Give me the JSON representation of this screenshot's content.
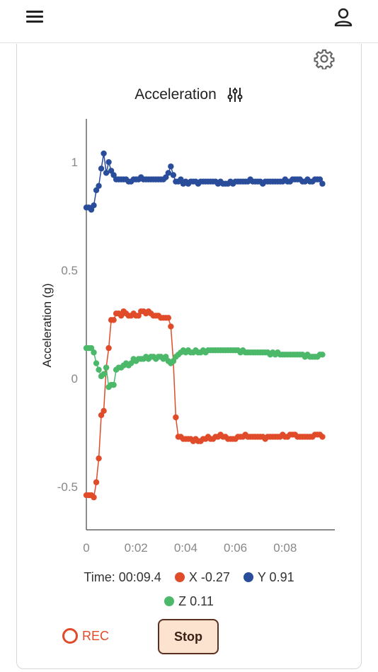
{
  "header": {
    "menu_icon": "hamburger-menu-icon",
    "account_icon": "user-icon"
  },
  "card": {
    "settings_icon": "gear-icon",
    "title": "Acceleration",
    "tune_icon": "tune-sliders-icon"
  },
  "chart_data": {
    "type": "line",
    "title": "Acceleration",
    "ylabel": "Acceleration (g)",
    "xlabel": "",
    "xlim": [
      0,
      0.1
    ],
    "ylim": [
      -0.7,
      1.2
    ],
    "x_ticks": [
      "0",
      "0:02",
      "0:04",
      "0:06",
      "0:08"
    ],
    "y_ticks": [
      "1",
      "0.5",
      "0",
      "-0.5"
    ],
    "y_tick_values": [
      1,
      0.5,
      0,
      -0.5
    ],
    "grid": false,
    "legend": "bottom",
    "x": [
      0,
      0.001,
      0.002,
      0.003,
      0.004,
      0.005,
      0.006,
      0.007,
      0.008,
      0.009,
      0.01,
      0.011,
      0.012,
      0.013,
      0.014,
      0.015,
      0.016,
      0.017,
      0.018,
      0.019,
      0.02,
      0.021,
      0.022,
      0.023,
      0.024,
      0.025,
      0.026,
      0.027,
      0.028,
      0.029,
      0.03,
      0.031,
      0.032,
      0.033,
      0.034,
      0.035,
      0.036,
      0.037,
      0.038,
      0.039,
      0.04,
      0.041,
      0.042,
      0.043,
      0.044,
      0.045,
      0.046,
      0.047,
      0.048,
      0.049,
      0.05,
      0.051,
      0.052,
      0.053,
      0.054,
      0.055,
      0.056,
      0.057,
      0.058,
      0.059,
      0.06,
      0.061,
      0.062,
      0.063,
      0.064,
      0.065,
      0.066,
      0.067,
      0.068,
      0.069,
      0.07,
      0.071,
      0.072,
      0.073,
      0.074,
      0.075,
      0.076,
      0.077,
      0.078,
      0.079,
      0.08,
      0.081,
      0.082,
      0.083,
      0.084,
      0.085,
      0.086,
      0.087,
      0.088,
      0.089,
      0.09,
      0.091,
      0.092,
      0.093,
      0.094,
      0.095
    ],
    "series": [
      {
        "name": "X",
        "color": "#e04b2a",
        "values": [
          -0.54,
          -0.54,
          -0.54,
          -0.55,
          -0.48,
          -0.37,
          -0.17,
          -0.15,
          0.05,
          0.14,
          0.27,
          0.27,
          0.3,
          0.3,
          0.29,
          0.31,
          0.3,
          0.29,
          0.29,
          0.3,
          0.29,
          0.29,
          0.31,
          0.31,
          0.3,
          0.31,
          0.3,
          0.29,
          0.29,
          0.29,
          0.28,
          0.28,
          0.28,
          0.28,
          0.24,
          0.08,
          -0.18,
          -0.27,
          -0.27,
          -0.28,
          -0.28,
          -0.28,
          -0.28,
          -0.29,
          -0.28,
          -0.29,
          -0.29,
          -0.28,
          -0.28,
          -0.27,
          -0.28,
          -0.28,
          -0.27,
          -0.27,
          -0.26,
          -0.27,
          -0.27,
          -0.28,
          -0.28,
          -0.28,
          -0.28,
          -0.27,
          -0.27,
          -0.27,
          -0.26,
          -0.27,
          -0.27,
          -0.27,
          -0.27,
          -0.27,
          -0.27,
          -0.27,
          -0.28,
          -0.27,
          -0.27,
          -0.27,
          -0.27,
          -0.27,
          -0.27,
          -0.26,
          -0.27,
          -0.27,
          -0.26,
          -0.26,
          -0.26,
          -0.27,
          -0.27,
          -0.27,
          -0.27,
          -0.27,
          -0.27,
          -0.27,
          -0.26,
          -0.26,
          -0.26,
          -0.27
        ]
      },
      {
        "name": "Y",
        "color": "#2a4d9b",
        "values": [
          0.79,
          0.79,
          0.78,
          0.8,
          0.87,
          0.89,
          0.97,
          1.04,
          0.95,
          1.0,
          0.96,
          0.94,
          0.92,
          0.92,
          0.92,
          0.92,
          0.92,
          0.91,
          0.91,
          0.92,
          0.92,
          0.92,
          0.93,
          0.92,
          0.92,
          0.92,
          0.92,
          0.92,
          0.92,
          0.92,
          0.92,
          0.92,
          0.93,
          0.95,
          0.98,
          0.94,
          0.91,
          0.91,
          0.92,
          0.9,
          0.91,
          0.9,
          0.91,
          0.91,
          0.91,
          0.9,
          0.91,
          0.91,
          0.91,
          0.91,
          0.91,
          0.91,
          0.91,
          0.9,
          0.91,
          0.9,
          0.9,
          0.9,
          0.91,
          0.9,
          0.91,
          0.91,
          0.91,
          0.91,
          0.91,
          0.91,
          0.92,
          0.91,
          0.91,
          0.91,
          0.91,
          0.9,
          0.91,
          0.91,
          0.91,
          0.91,
          0.91,
          0.91,
          0.91,
          0.91,
          0.92,
          0.91,
          0.91,
          0.92,
          0.92,
          0.92,
          0.92,
          0.91,
          0.91,
          0.92,
          0.91,
          0.91,
          0.92,
          0.92,
          0.92,
          0.9
        ]
      },
      {
        "name": "Z",
        "color": "#4cb86a",
        "values": [
          0.14,
          0.14,
          0.14,
          0.12,
          0.07,
          0.04,
          0.01,
          0.02,
          0.05,
          -0.04,
          -0.03,
          -0.03,
          0.04,
          0.05,
          0.05,
          0.06,
          0.07,
          0.06,
          0.07,
          0.09,
          0.08,
          0.09,
          0.09,
          0.09,
          0.1,
          0.09,
          0.1,
          0.1,
          0.09,
          0.1,
          0.1,
          0.09,
          0.1,
          0.08,
          0.07,
          0.08,
          0.1,
          0.11,
          0.12,
          0.13,
          0.12,
          0.13,
          0.12,
          0.12,
          0.13,
          0.12,
          0.12,
          0.13,
          0.12,
          0.13,
          0.13,
          0.13,
          0.13,
          0.13,
          0.13,
          0.13,
          0.13,
          0.13,
          0.13,
          0.13,
          0.13,
          0.13,
          0.12,
          0.13,
          0.12,
          0.12,
          0.12,
          0.12,
          0.12,
          0.12,
          0.12,
          0.12,
          0.12,
          0.12,
          0.11,
          0.12,
          0.11,
          0.12,
          0.11,
          0.11,
          0.11,
          0.11,
          0.11,
          0.11,
          0.11,
          0.11,
          0.11,
          0.11,
          0.1,
          0.11,
          0.1,
          0.1,
          0.1,
          0.1,
          0.11,
          0.11
        ]
      }
    ]
  },
  "legend": {
    "time_label": "Time: 00:09.4",
    "x_label": "X -0.27",
    "y_label": "Y 0.91",
    "z_label": "Z 0.11"
  },
  "controls": {
    "rec_label": "REC",
    "stop_label": "Stop"
  },
  "colors": {
    "x": "#e04b2a",
    "y": "#2a4d9b",
    "z": "#4cb86a",
    "rec": "#e04b2a",
    "stop_bg": "#fbe3cf"
  }
}
